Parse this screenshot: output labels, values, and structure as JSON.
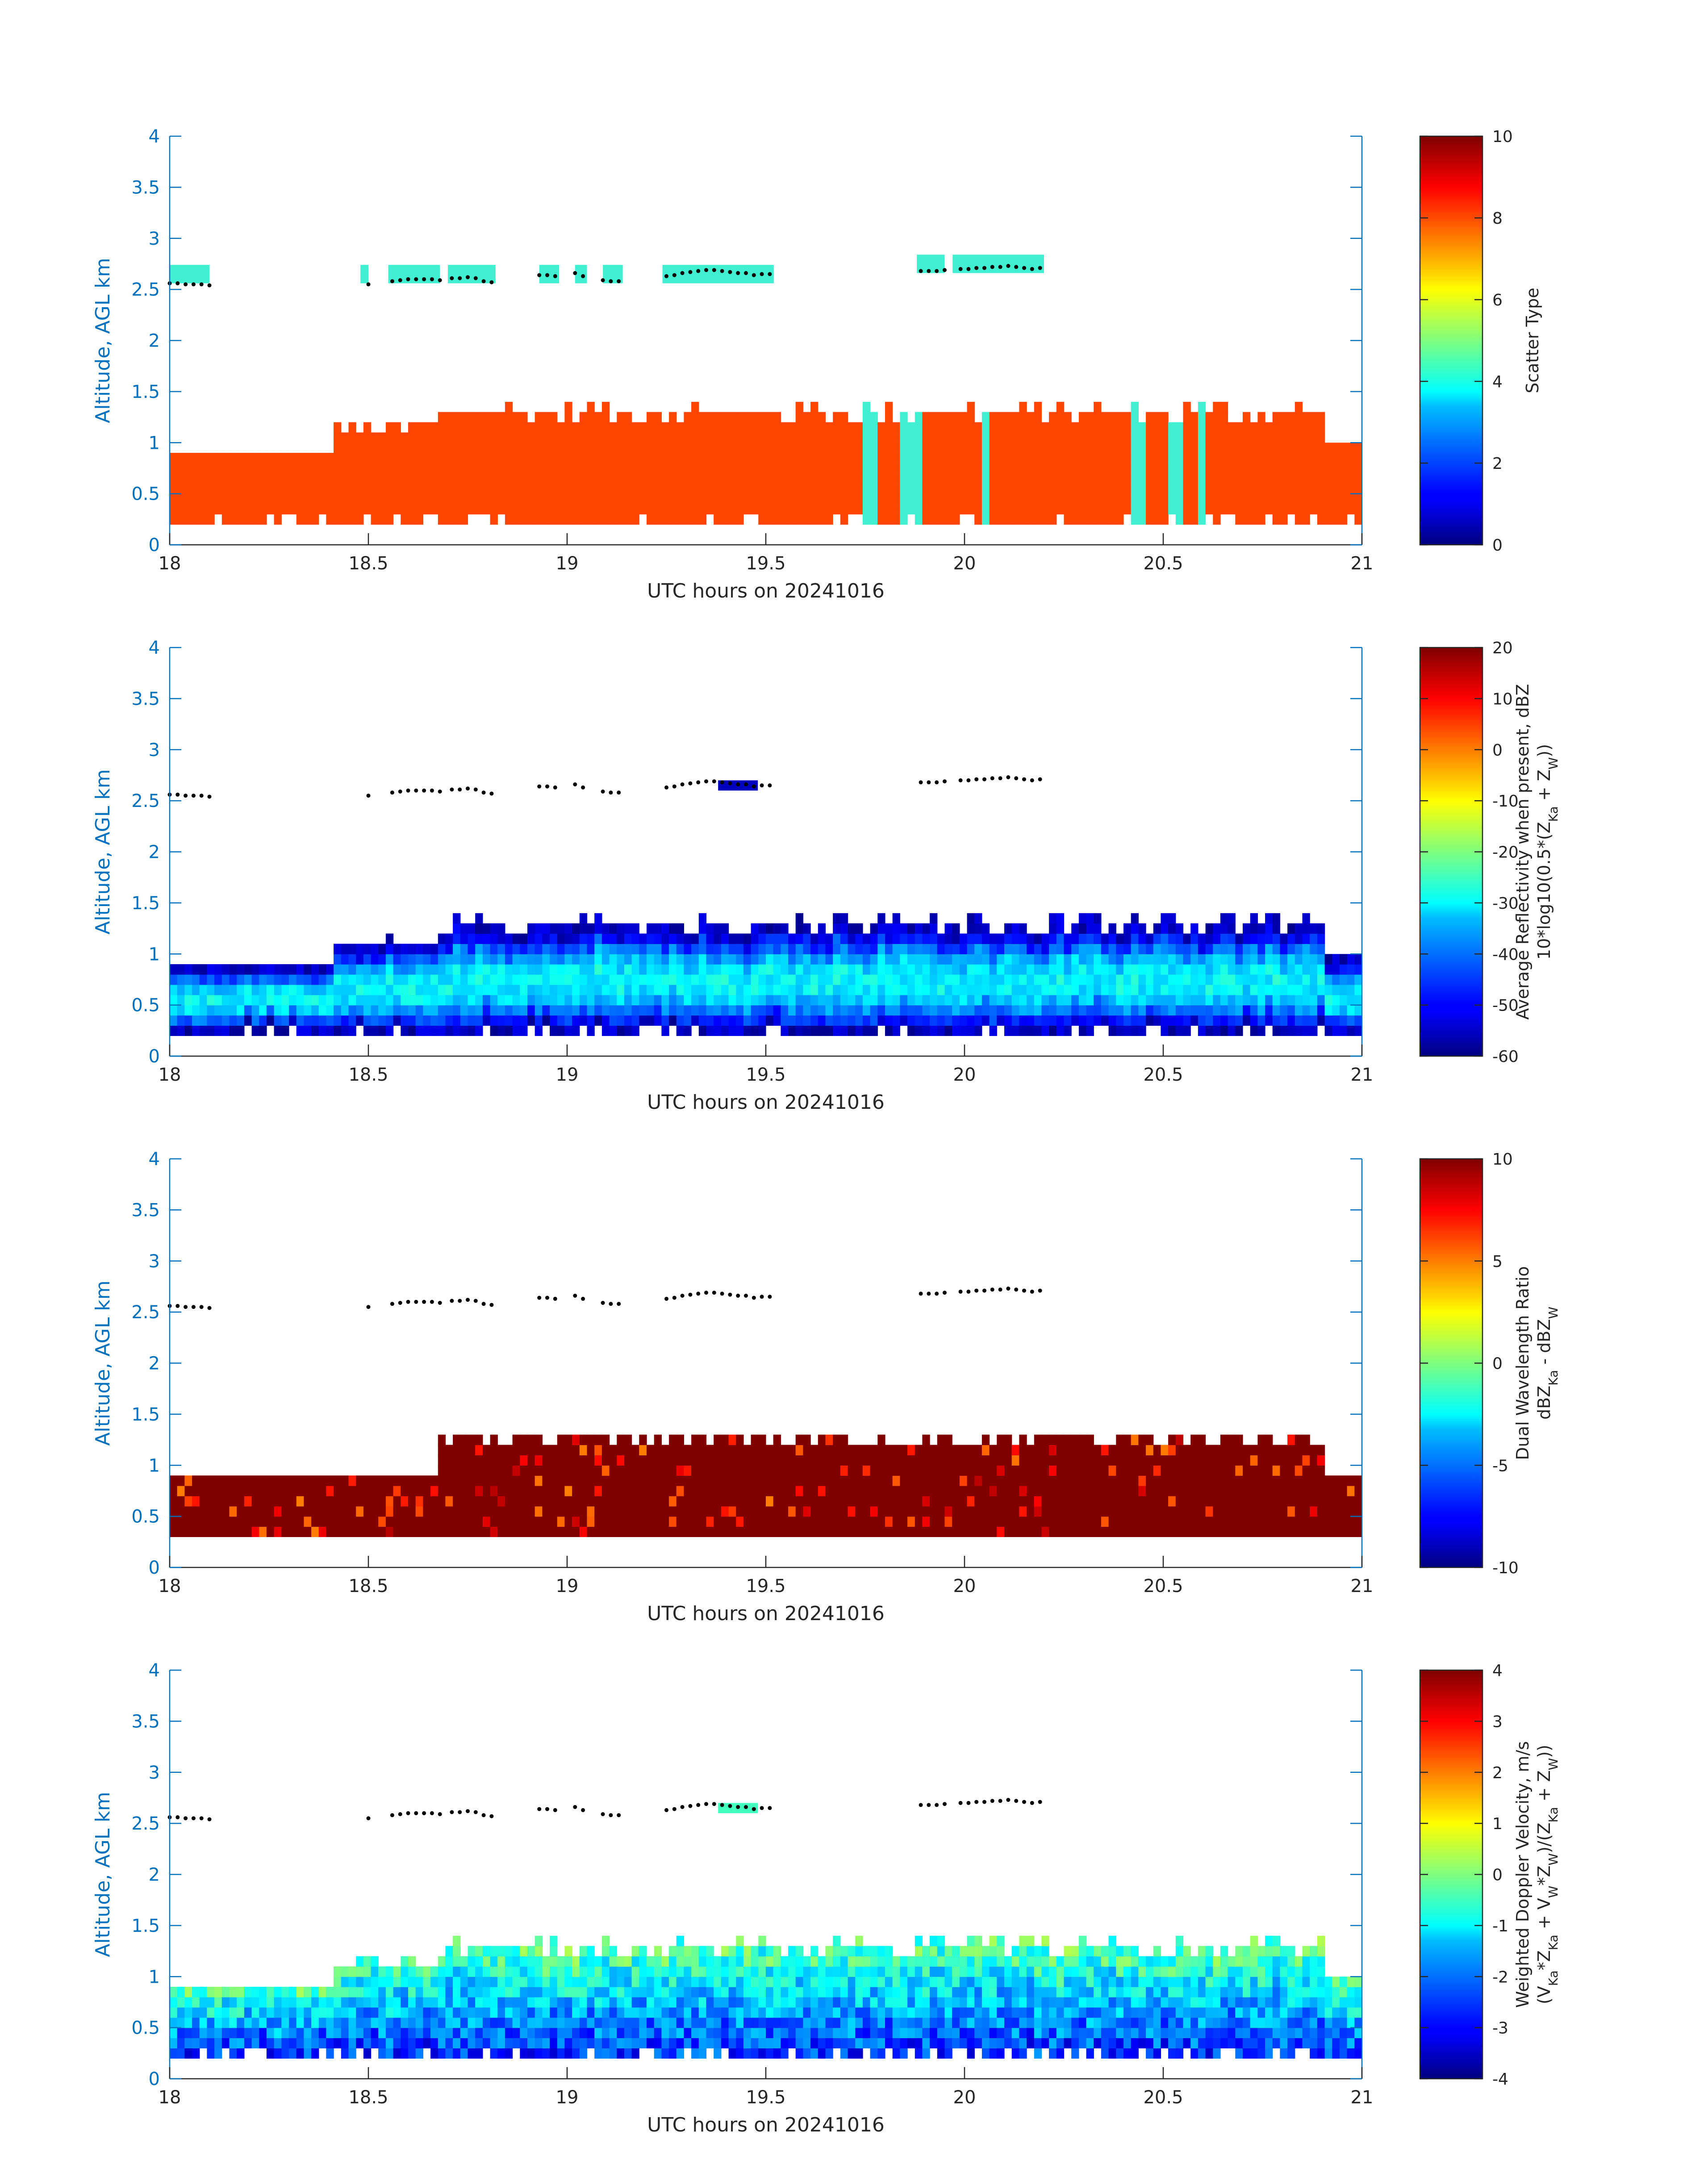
{
  "colors": {
    "axis_blue": "#0072bd",
    "marker": "#000000",
    "scatter_class_lower": "#ff4500",
    "scatter_class_upper": "#40f0d0",
    "dwr_fill": "#800000",
    "refl_fill": "#2a7de8",
    "vel_fill": "#3fd9f0"
  },
  "chart_data": [
    {
      "type": "heatmap",
      "xlabel": "UTC hours on 20241016",
      "ylabel": "Altitude, AGL km",
      "xlim": [
        18,
        21
      ],
      "ylim": [
        0,
        4
      ],
      "xticks": [
        "18",
        "18.5",
        "19",
        "19.5",
        "20",
        "20.5",
        "21"
      ],
      "yticks": [
        "0",
        "0.5",
        "1",
        "1.5",
        "2",
        "2.5",
        "3",
        "3.5",
        "4"
      ],
      "colorbar": {
        "label_lines": [
          "Scatter Type"
        ],
        "range": [
          0,
          10
        ],
        "ticks": [
          "0",
          "2",
          "4",
          "6",
          "8",
          "10"
        ]
      },
      "layers": [
        {
          "name": "lower",
          "x": [
            18,
            21
          ],
          "y": [
            0.18,
            1.35
          ],
          "value": 9
        },
        {
          "name": "upper",
          "x": [
            18,
            20.2
          ],
          "y": [
            2.5,
            2.9
          ],
          "value": 4
        }
      ],
      "cloud_top_markers": true
    },
    {
      "type": "heatmap",
      "xlabel": "UTC hours on 20241016",
      "ylabel": "Altitude, AGL km",
      "xlim": [
        18,
        21
      ],
      "ylim": [
        0,
        4
      ],
      "xticks": [
        "18",
        "18.5",
        "19",
        "19.5",
        "20",
        "20.5",
        "21"
      ],
      "yticks": [
        "0",
        "0.5",
        "1",
        "1.5",
        "2",
        "2.5",
        "3",
        "3.5",
        "4"
      ],
      "colorbar": {
        "label_lines": [
          "Average Reflectivity when present, dBZ",
          "10*log10(0.5*(Z",
          "Ka",
          " + Z",
          "W",
          "))"
        ],
        "range": [
          -60,
          20
        ],
        "ticks": [
          "-60",
          "-50",
          "-40",
          "-30",
          "-20",
          "-10",
          "0",
          "10",
          "20"
        ]
      },
      "layers": [
        {
          "name": "lower",
          "x": [
            18,
            21
          ],
          "y": [
            0.18,
            1.35
          ],
          "value": -40
        },
        {
          "name": "upper",
          "x": [
            19.38,
            19.48
          ],
          "y": [
            2.6,
            2.7
          ],
          "value": -55
        }
      ],
      "cloud_top_markers": true
    },
    {
      "type": "heatmap",
      "xlabel": "UTC hours on 20241016",
      "ylabel": "Altitude, AGL km",
      "xlim": [
        18,
        21
      ],
      "ylim": [
        0,
        4
      ],
      "xticks": [
        "18",
        "18.5",
        "19",
        "19.5",
        "20",
        "20.5",
        "21"
      ],
      "yticks": [
        "0",
        "0.5",
        "1",
        "1.5",
        "2",
        "2.5",
        "3",
        "3.5",
        "4"
      ],
      "colorbar": {
        "label_lines": [
          "Dual Wavelength Ratio",
          "dBZ",
          "Ka",
          " - dBZ",
          "W"
        ],
        "range": [
          -10,
          10
        ],
        "ticks": [
          "-10",
          "-5",
          "0",
          "5",
          "10"
        ]
      },
      "layers": [
        {
          "name": "lower",
          "x": [
            18,
            21
          ],
          "y": [
            0.3,
            1.3
          ],
          "value": 10
        }
      ],
      "cloud_top_markers": true
    },
    {
      "type": "heatmap",
      "xlabel": "UTC hours on 20241016",
      "ylabel": "Altitude, AGL km",
      "xlim": [
        18,
        21
      ],
      "ylim": [
        0,
        4
      ],
      "xticks": [
        "18",
        "18.5",
        "19",
        "19.5",
        "20",
        "20.5",
        "21"
      ],
      "yticks": [
        "0",
        "0.5",
        "1",
        "1.5",
        "2",
        "2.5",
        "3",
        "3.5",
        "4"
      ],
      "colorbar": {
        "label_lines": [
          "Weighted Doppler Velocity, m/s",
          "(V",
          "Ka",
          "*Z",
          "Ka",
          " + V",
          "W",
          "*Z",
          "W",
          ")/(Z",
          "Ka",
          " + Z",
          "W",
          "))"
        ],
        "range": [
          -4,
          4
        ],
        "ticks": [
          "-4",
          "-3",
          "-2",
          "-1",
          "0",
          "1",
          "2",
          "3",
          "4"
        ]
      },
      "layers": [
        {
          "name": "lower",
          "x": [
            18,
            21
          ],
          "y": [
            0.18,
            1.35
          ],
          "value": -1
        },
        {
          "name": "upper",
          "x": [
            19.38,
            19.48
          ],
          "y": [
            2.6,
            2.7
          ],
          "value": -0.5
        }
      ],
      "cloud_top_markers": true
    }
  ],
  "cloud_top_markers": {
    "x": [
      18.0,
      18.02,
      18.04,
      18.06,
      18.08,
      18.1,
      18.5,
      18.56,
      18.58,
      18.6,
      18.62,
      18.64,
      18.66,
      18.68,
      18.71,
      18.73,
      18.75,
      18.77,
      18.79,
      18.81,
      18.93,
      18.95,
      18.97,
      19.02,
      19.04,
      19.09,
      19.11,
      19.13,
      19.25,
      19.27,
      19.29,
      19.31,
      19.33,
      19.35,
      19.37,
      19.39,
      19.41,
      19.43,
      19.45,
      19.47,
      19.49,
      19.51,
      19.89,
      19.91,
      19.93,
      19.95,
      19.99,
      20.01,
      20.03,
      20.05,
      20.07,
      20.09,
      20.11,
      20.13,
      20.15,
      20.17,
      20.19
    ],
    "y": [
      2.56,
      2.56,
      2.55,
      2.55,
      2.55,
      2.54,
      2.55,
      2.58,
      2.59,
      2.6,
      2.6,
      2.6,
      2.6,
      2.59,
      2.61,
      2.61,
      2.62,
      2.61,
      2.58,
      2.57,
      2.64,
      2.64,
      2.63,
      2.66,
      2.63,
      2.59,
      2.58,
      2.58,
      2.63,
      2.64,
      2.66,
      2.67,
      2.68,
      2.69,
      2.69,
      2.68,
      2.67,
      2.66,
      2.66,
      2.64,
      2.65,
      2.65,
      2.68,
      2.68,
      2.68,
      2.69,
      2.7,
      2.7,
      2.71,
      2.71,
      2.72,
      2.72,
      2.73,
      2.72,
      2.71,
      2.7,
      2.71
    ]
  }
}
